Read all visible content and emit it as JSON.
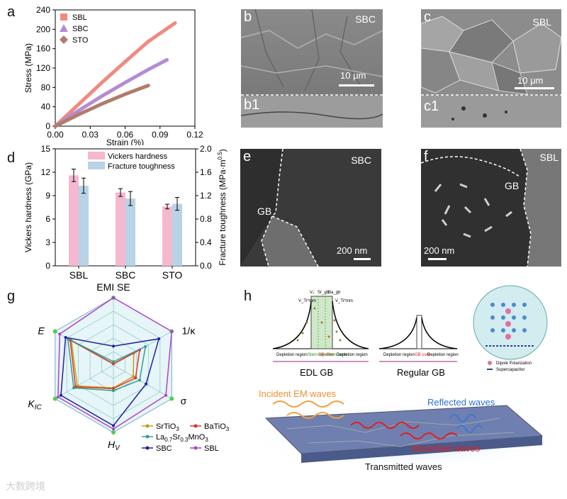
{
  "panel_labels": {
    "a": "a",
    "b": "b",
    "b1": "b1",
    "c": "c",
    "c1": "c1",
    "d": "d",
    "e": "e",
    "f": "f",
    "g": "g",
    "h": "h"
  },
  "chart_data": [
    {
      "id": "a",
      "type": "line",
      "xlabel": "Strain (%)",
      "ylabel": "Stress (MPa)",
      "xlim": [
        0,
        0.12
      ],
      "ylim": [
        0,
        240
      ],
      "xticks": [
        "0.00",
        "0.03",
        "0.06",
        "0.09",
        "0.12"
      ],
      "yticks": [
        "0",
        "40",
        "80",
        "120",
        "160",
        "200",
        "240"
      ],
      "legend_position": "top-left",
      "series": [
        {
          "name": "SBL",
          "color": "#f08a80",
          "marker": "square",
          "x": [
            0,
            0.02,
            0.04,
            0.06,
            0.08,
            0.103
          ],
          "y": [
            0,
            45,
            90,
            133,
            175,
            213
          ]
        },
        {
          "name": "SBC",
          "color": "#b48cd4",
          "marker": "triangle",
          "x": [
            0,
            0.02,
            0.04,
            0.06,
            0.08,
            0.096
          ],
          "y": [
            0,
            32,
            62,
            90,
            117,
            137
          ]
        },
        {
          "name": "STO",
          "color": "#b27c6a",
          "marker": "diamond",
          "x": [
            0,
            0.02,
            0.04,
            0.06,
            0.08
          ],
          "y": [
            0,
            24,
            46,
            66,
            84
          ]
        }
      ]
    },
    {
      "id": "d",
      "type": "bar",
      "categories": [
        "SBL",
        "SBC",
        "STO"
      ],
      "ylabel": "Vickers hardness (GPa)",
      "y2label": "Fracture toughness (MPa·m",
      "y2label_sup": "0.5",
      "y2label_end": ")",
      "ylim": [
        0,
        15
      ],
      "y2lim": [
        0,
        2.0
      ],
      "yticks": [
        "0",
        "3",
        "6",
        "9",
        "12",
        "15"
      ],
      "y2ticks": [
        "0.0",
        "0.4",
        "0.8",
        "1.2",
        "1.6",
        "2.0"
      ],
      "legend_position": "top-right",
      "series": [
        {
          "name": "Vickers hardness",
          "color": "#f4b8cf",
          "axis": "left",
          "values": [
            11.6,
            9.4,
            7.6
          ],
          "errors": [
            0.8,
            0.5,
            0.3
          ]
        },
        {
          "name": "Fracture toughness",
          "color": "#b9d3e6",
          "axis": "right",
          "values": [
            1.37,
            1.15,
            1.06
          ],
          "errors": [
            0.13,
            0.12,
            0.11
          ]
        }
      ]
    },
    {
      "id": "g",
      "type": "radar",
      "axes": [
        "EMI SE",
        "1/κ",
        "σ",
        "HV",
        "KIC",
        "E"
      ],
      "axis_labels": {
        "emi": "EMI SE",
        "kappa": "1/κ",
        "sigma": "σ",
        "hv_main": "H",
        "hv_sub": "V",
        "kic_main": "K",
        "kic_sub": "IC",
        "e": "E"
      },
      "levels": 5,
      "series": [
        {
          "name": "SrTiO3",
          "label_main": "SrTiO",
          "label_sub": "3",
          "color": "#c2a010",
          "values": [
            0.02,
            0.35,
            0.34,
            0.34,
            0.62,
            0.72
          ]
        },
        {
          "name": "BaTiO3",
          "label_main": "BaTiO",
          "label_sub": "3",
          "color": "#e03030",
          "values": [
            0.02,
            0.45,
            0.38,
            0.35,
            0.65,
            0.74
          ]
        },
        {
          "name": "La0.7Sr0.3MnO3",
          "label_parts": [
            "La",
            "0.7",
            "Sr",
            "0.3",
            "MnO",
            "3"
          ],
          "color": "#30a090",
          "values": [
            0.05,
            0.55,
            0.45,
            0.38,
            0.68,
            0.78
          ]
        },
        {
          "name": "SBC",
          "label_main": "SBC",
          "label_sub": "",
          "color": "#2020a0",
          "values": [
            0.28,
            0.78,
            0.56,
            0.9,
            0.9,
            0.82
          ]
        },
        {
          "name": "SBL",
          "label_main": "SBL",
          "label_sub": "",
          "color": "#b040d0",
          "values": [
            1,
            1,
            0.9,
            0.95,
            0.95,
            0.92
          ]
        }
      ]
    }
  ],
  "sem": {
    "b_label": "SBC",
    "b_scale": "10 μm",
    "c_label": "SBL",
    "c_scale": "10 μm",
    "e_label": "SBC",
    "e_gb": "GB",
    "e_scale": "200 nm",
    "f_label": "SBL",
    "f_gb": "GB",
    "f_scale": "200 nm"
  },
  "panel_h": {
    "edl_title": "EDL GB",
    "regular_title": "Regular GB",
    "edl_top_labels": [
      "V₀̈",
      "Sr_gb",
      "Ba_gb"
    ],
    "edl_v_left": "V_Ti^mm",
    "edl_v_right": "V_Ti^mm",
    "edl_regions": [
      "Depletion region",
      "Stern layer",
      "GB core",
      "Stern layer",
      "Depletion region"
    ],
    "regular_regions": [
      "Depletion region",
      "GB core",
      "Depletion region"
    ],
    "legend_dipole": "Dipole Polarization",
    "legend_supercap": "Supercapacitor",
    "incident": "Incident EM waves",
    "reflected": "Reflected waves",
    "absorbed": "Absorbed waves",
    "transmitted": "Transmitted waves"
  },
  "watermark": "大数跨境"
}
